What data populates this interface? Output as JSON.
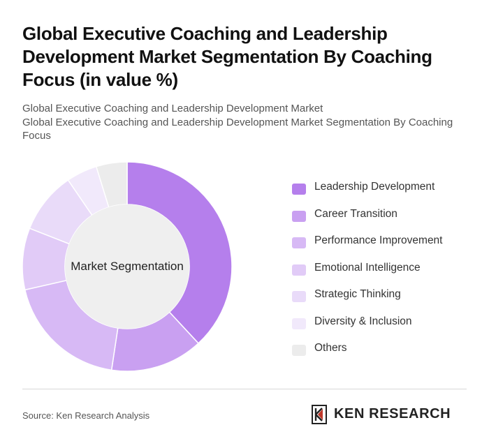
{
  "title": "Global Executive Coaching and Leadership Development Market Segmentation By Coaching Focus (in value %)",
  "subtitle_1": "Global Executive Coaching and Leadership Development Market",
  "subtitle_2": "Global Executive Coaching and Leadership Development Market Segmentation By Coaching Focus",
  "center_label": "Market Segmentation",
  "source": "Source: Ken Research Analysis",
  "logo": {
    "text": "KEN RESEARCH",
    "icon": "ken-research-logo-icon"
  },
  "chart_data": {
    "type": "pie",
    "variant": "donut",
    "legend_position": "right",
    "categories": [
      "Leadership Development",
      "Career Transition",
      "Performance Improvement",
      "Emotional Intelligence",
      "Strategic Thinking",
      "Diversity & Inclusion",
      "Others"
    ],
    "values": [
      40,
      15,
      20,
      10,
      10,
      5,
      5
    ],
    "colors": [
      "#b57fec",
      "#c9a0f1",
      "#d7b9f5",
      "#e1cbf7",
      "#e9dbf9",
      "#f1e9fb",
      "#ececec"
    ]
  }
}
